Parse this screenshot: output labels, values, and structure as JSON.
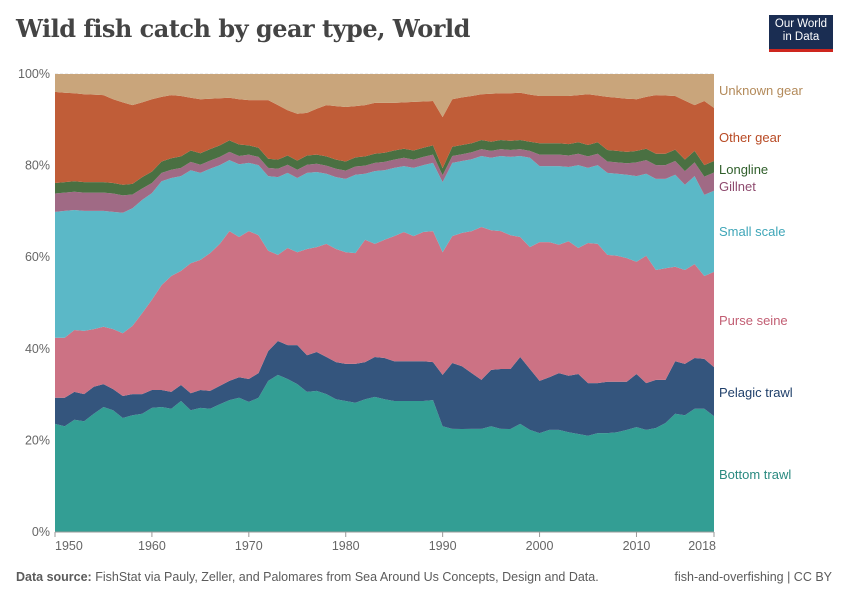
{
  "title": "Wild fish catch by gear type, World",
  "logo": {
    "line1": "Our World",
    "line2": "in Data"
  },
  "footer": {
    "source_label": "Data source:",
    "source_text": "FishStat via Pauly, Zeller, and Palomares from Sea Around Us Concepts, Design and Data.",
    "right": "fish-and-overfishing | CC BY"
  },
  "chart_data": {
    "type": "area",
    "stacked": true,
    "relative": true,
    "title": "Wild fish catch by gear type, World",
    "x": [
      1950,
      1951,
      1952,
      1953,
      1954,
      1955,
      1956,
      1957,
      1958,
      1959,
      1960,
      1961,
      1962,
      1963,
      1964,
      1965,
      1966,
      1967,
      1968,
      1969,
      1970,
      1971,
      1972,
      1973,
      1974,
      1975,
      1976,
      1977,
      1978,
      1979,
      1980,
      1981,
      1982,
      1983,
      1984,
      1985,
      1986,
      1987,
      1988,
      1989,
      1990,
      1991,
      1992,
      1993,
      1994,
      1995,
      1996,
      1997,
      1998,
      1999,
      2000,
      2001,
      2002,
      2003,
      2004,
      2005,
      2006,
      2007,
      2008,
      2009,
      2010,
      2011,
      2012,
      2013,
      2014,
      2015,
      2016,
      2017,
      2018
    ],
    "xlim": [
      1950,
      2018
    ],
    "x_ticks": [
      "1950",
      "1960",
      "1970",
      "1980",
      "1990",
      "2000",
      "2010",
      "2018"
    ],
    "ylim": [
      0,
      100
    ],
    "y_ticks": [
      "0%",
      "20%",
      "40%",
      "60%",
      "80%",
      "100%"
    ],
    "grid": true,
    "legend": "right-inline-labels",
    "series": [
      {
        "name": "Bottom trawl",
        "color": "#339e94",
        "label_color": "#2a8a80",
        "values": [
          23.6,
          23.1,
          24.5,
          24.2,
          25.8,
          27.3,
          26.6,
          24.9,
          25.5,
          25.8,
          27.1,
          27.3,
          26.9,
          28.6,
          26.6,
          27.1,
          26.9,
          27.9,
          28.8,
          29.3,
          28.4,
          29.3,
          33.0,
          34.3,
          33.4,
          32.3,
          30.6,
          30.8,
          30.1,
          29.0,
          28.6,
          28.2,
          29.0,
          29.5,
          29.0,
          28.6,
          28.6,
          28.6,
          28.6,
          28.8,
          23.1,
          22.5,
          22.5,
          22.5,
          22.5,
          23.1,
          22.5,
          22.5,
          23.6,
          22.3,
          21.6,
          22.3,
          22.3,
          21.8,
          21.4,
          21.0,
          21.6,
          21.6,
          21.8,
          22.3,
          22.9,
          22.3,
          22.7,
          23.8,
          25.8,
          25.5,
          26.9,
          26.9,
          25.3
        ]
      },
      {
        "name": "Pelagic trawl",
        "color": "#34557d",
        "label_color": "#1f3f6a",
        "values": [
          5.7,
          6.2,
          6.1,
          5.9,
          5.9,
          5.0,
          4.6,
          4.8,
          4.6,
          4.3,
          3.9,
          3.7,
          3.7,
          3.5,
          3.7,
          3.9,
          3.9,
          4.0,
          4.2,
          4.5,
          5.0,
          5.4,
          6.5,
          7.4,
          7.4,
          8.5,
          8.0,
          8.5,
          8.1,
          8.1,
          8.1,
          8.5,
          8.1,
          8.7,
          9.0,
          8.7,
          8.7,
          8.7,
          8.7,
          8.3,
          11.2,
          14.4,
          13.7,
          12.2,
          10.7,
          12.3,
          13.1,
          13.1,
          14.6,
          13.3,
          11.4,
          11.5,
          12.4,
          12.3,
          13.1,
          11.5,
          10.9,
          11.2,
          11.0,
          10.5,
          11.6,
          10.2,
          10.5,
          9.4,
          11.5,
          11.2,
          11.1,
          10.9,
          10.7
        ]
      },
      {
        "name": "Purse seine",
        "color": "#cc7284",
        "label_color": "#c25e73",
        "values": [
          13.1,
          13.1,
          13.5,
          13.8,
          12.6,
          12.5,
          13.1,
          13.7,
          14.9,
          17.7,
          19.7,
          22.9,
          25.3,
          24.9,
          28.4,
          28.4,
          30.1,
          31.0,
          32.7,
          30.6,
          32.3,
          30.1,
          21.9,
          18.8,
          21.2,
          20.3,
          23.2,
          22.9,
          24.7,
          24.7,
          24.4,
          24.2,
          26.7,
          24.7,
          25.8,
          27.3,
          28.2,
          27.3,
          28.2,
          28.6,
          26.8,
          27.7,
          29.1,
          31.0,
          33.4,
          30.5,
          30.1,
          29.2,
          26.2,
          26.6,
          30.3,
          29.5,
          28.0,
          29.4,
          27.5,
          30.6,
          30.4,
          27.7,
          27.5,
          27.0,
          24.5,
          27.8,
          24.0,
          24.4,
          20.6,
          20.5,
          20.5,
          18.1,
          20.8
        ]
      },
      {
        "name": "Small scale",
        "color": "#5bb8c7",
        "label_color": "#3fa6b8",
        "values": [
          27.5,
          27.7,
          26.2,
          26.2,
          25.8,
          25.3,
          25.6,
          26.3,
          25.7,
          24.7,
          23.3,
          22.7,
          21.4,
          20.7,
          20.3,
          19.0,
          18.4,
          17.2,
          15.5,
          15.9,
          14.9,
          15.3,
          16.3,
          17.0,
          16.4,
          16.2,
          16.6,
          16.4,
          15.3,
          15.7,
          16.0,
          17.1,
          14.4,
          15.9,
          15.2,
          14.9,
          14.4,
          14.9,
          14.6,
          14.9,
          15.3,
          16.0,
          15.7,
          15.7,
          15.5,
          15.8,
          16.4,
          17.1,
          17.7,
          19.5,
          16.6,
          16.6,
          17.2,
          16.2,
          18.1,
          16.4,
          17.2,
          17.9,
          17.9,
          18.2,
          18.7,
          17.9,
          19.9,
          19.5,
          20.1,
          18.6,
          19.2,
          17.7,
          17.7
        ]
      },
      {
        "name": "Gillnet",
        "color": "#a06a85",
        "label_color": "#8e4a6e",
        "values": [
          4.0,
          4.0,
          4.0,
          4.0,
          4.0,
          4.0,
          4.0,
          3.8,
          3.0,
          2.5,
          2.2,
          1.8,
          1.8,
          1.8,
          1.8,
          1.8,
          1.8,
          1.8,
          1.8,
          1.8,
          1.8,
          1.8,
          1.8,
          1.8,
          1.8,
          1.8,
          1.8,
          1.8,
          1.8,
          1.8,
          1.8,
          1.8,
          1.8,
          1.8,
          1.8,
          1.8,
          1.8,
          1.8,
          1.8,
          1.8,
          1.5,
          1.5,
          1.5,
          1.5,
          1.5,
          1.5,
          1.5,
          1.5,
          1.5,
          1.5,
          2.5,
          2.5,
          2.5,
          2.5,
          2.5,
          2.5,
          2.5,
          2.5,
          2.5,
          2.5,
          3.0,
          3.0,
          3.0,
          3.0,
          3.0,
          3.0,
          3.0,
          4.0,
          4.0
        ]
      },
      {
        "name": "Longline",
        "color": "#4a7042",
        "label_color": "#2f5e2a",
        "values": [
          2.3,
          2.3,
          2.3,
          2.3,
          2.3,
          2.3,
          2.3,
          2.3,
          2.3,
          2.5,
          2.5,
          2.5,
          2.5,
          2.5,
          2.5,
          2.5,
          2.5,
          2.5,
          2.5,
          2.5,
          2.0,
          2.0,
          2.0,
          2.0,
          2.0,
          2.0,
          2.0,
          2.0,
          2.0,
          2.0,
          2.0,
          2.0,
          2.0,
          2.0,
          2.0,
          2.0,
          2.0,
          2.0,
          2.0,
          2.0,
          1.5,
          2.0,
          2.0,
          2.0,
          2.0,
          2.0,
          2.0,
          2.0,
          2.0,
          2.0,
          2.5,
          2.5,
          2.5,
          2.5,
          2.5,
          2.5,
          2.5,
          2.5,
          2.5,
          2.5,
          2.5,
          2.5,
          2.5,
          2.5,
          2.5,
          2.5,
          2.5,
          2.5,
          2.5
        ]
      },
      {
        "name": "Other gear",
        "color": "#c05d38",
        "label_color": "#b84a24",
        "values": [
          19.9,
          19.5,
          19.2,
          19.2,
          19.1,
          19.0,
          18.3,
          18.0,
          17.2,
          16.3,
          15.8,
          14.1,
          13.8,
          13.2,
          11.5,
          11.8,
          11.0,
          10.3,
          9.3,
          9.9,
          9.9,
          10.4,
          12.8,
          11.9,
          9.9,
          10.2,
          9.3,
          10.0,
          11.2,
          11.7,
          11.9,
          11.2,
          11.2,
          11.1,
          10.9,
          10.4,
          10.1,
          10.6,
          10.1,
          9.7,
          11.2,
          10.4,
          10.4,
          10.3,
          10.0,
          10.5,
          10.2,
          10.4,
          10.3,
          10.3,
          10.3,
          10.3,
          10.3,
          10.5,
          10.3,
          11.1,
          10.2,
          11.6,
          11.6,
          11.6,
          11.3,
          11.3,
          12.8,
          12.7,
          11.7,
          12.9,
          10.0,
          14.0,
          11.6
        ]
      },
      {
        "name": "Unknown gear",
        "color": "#c9a57b",
        "label_color": "#b38a5a",
        "values": [
          3.9,
          4.1,
          4.2,
          4.4,
          4.5,
          4.6,
          5.5,
          6.2,
          6.8,
          6.2,
          5.5,
          5.0,
          4.6,
          4.8,
          5.2,
          5.5,
          5.4,
          5.3,
          5.2,
          5.5,
          5.7,
          5.7,
          5.7,
          6.8,
          7.9,
          8.7,
          8.5,
          7.6,
          6.8,
          7.0,
          7.2,
          7.0,
          6.8,
          6.3,
          6.3,
          6.3,
          6.2,
          6.1,
          6.0,
          5.9,
          9.4,
          5.5,
          5.1,
          4.8,
          4.4,
          4.3,
          4.2,
          4.2,
          4.1,
          4.5,
          4.8,
          4.8,
          4.8,
          4.8,
          4.6,
          4.4,
          4.7,
          5.0,
          5.2,
          5.4,
          5.5,
          5.0,
          4.6,
          4.7,
          4.8,
          5.8,
          6.8,
          5.9,
          7.4
        ]
      }
    ]
  }
}
